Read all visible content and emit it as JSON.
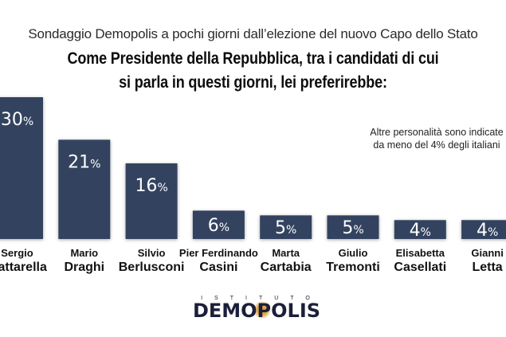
{
  "header": {
    "subtitle": "Sondaggio Demopolis a pochi giorni dall’elezione del nuovo Capo dello Stato",
    "title_line1": "Come Presidente della Repubblica, tra i candidati di cui",
    "title_line2": "si parla in questi giorni, lei preferirebbe:"
  },
  "note": {
    "line1": "Altre personalità sono indicate",
    "line2": "da meno del 4% degli italiani"
  },
  "logo": {
    "top": "ISTITUTO",
    "main": "DEMOPOLIS"
  },
  "colors": {
    "bar": "#33435f",
    "text": "#111111"
  },
  "chart_data": {
    "type": "bar",
    "title": "Come Presidente della Repubblica, tra i candidati di cui si parla in questi giorni, lei preferirebbe:",
    "subtitle": "Sondaggio Demopolis a pochi giorni dall’elezione del nuovo Capo dello Stato",
    "categories": [
      [
        "Sergio",
        "Mattarella"
      ],
      [
        "Mario",
        "Draghi"
      ],
      [
        "Silvio",
        "Berlusconi"
      ],
      [
        "Pier Ferdinando",
        "Casini"
      ],
      [
        "Marta",
        "Cartabia"
      ],
      [
        "Giulio",
        "Tremonti"
      ],
      [
        "Elisabetta",
        "Casellati"
      ],
      [
        "Gianni",
        "Letta"
      ]
    ],
    "values": [
      30,
      21,
      16,
      6,
      5,
      5,
      4,
      4
    ],
    "unit": "%",
    "xlabel": "",
    "ylabel": "",
    "ylim": [
      0,
      30
    ],
    "grid": false,
    "annotation": "Altre personalità sono indicate da meno del 4% degli italiani"
  }
}
